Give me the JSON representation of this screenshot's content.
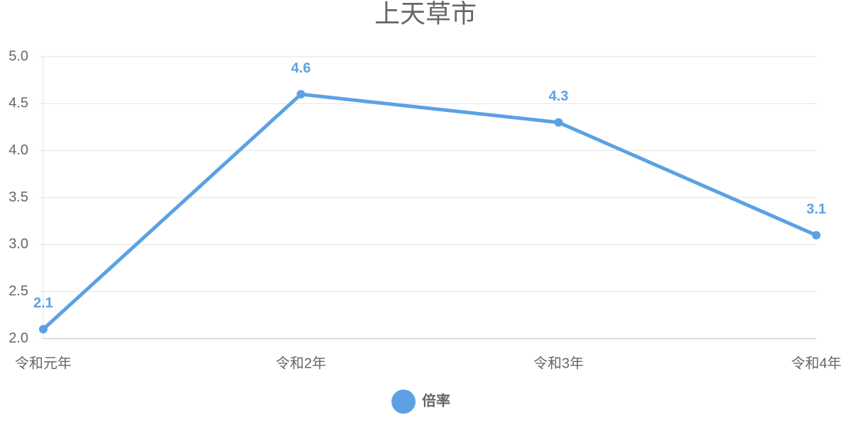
{
  "chart_data": {
    "type": "line",
    "title": "上天草市",
    "categories": [
      "令和元年",
      "令和2年",
      "令和3年",
      "令和4年"
    ],
    "series": [
      {
        "name": "倍率",
        "color": "#5ba1e4",
        "values": [
          2.1,
          4.6,
          4.3,
          3.1
        ]
      }
    ],
    "ylim": [
      2,
      5
    ],
    "yticks": [
      {
        "value": 2,
        "label": "2.0"
      },
      2.5,
      {
        "value": 3,
        "label": "3.0"
      },
      3.5,
      {
        "value": 4,
        "label": "4.0"
      },
      4.5,
      {
        "value": 5,
        "label": "5.0"
      }
    ],
    "grid": true,
    "legend": "bottom"
  }
}
